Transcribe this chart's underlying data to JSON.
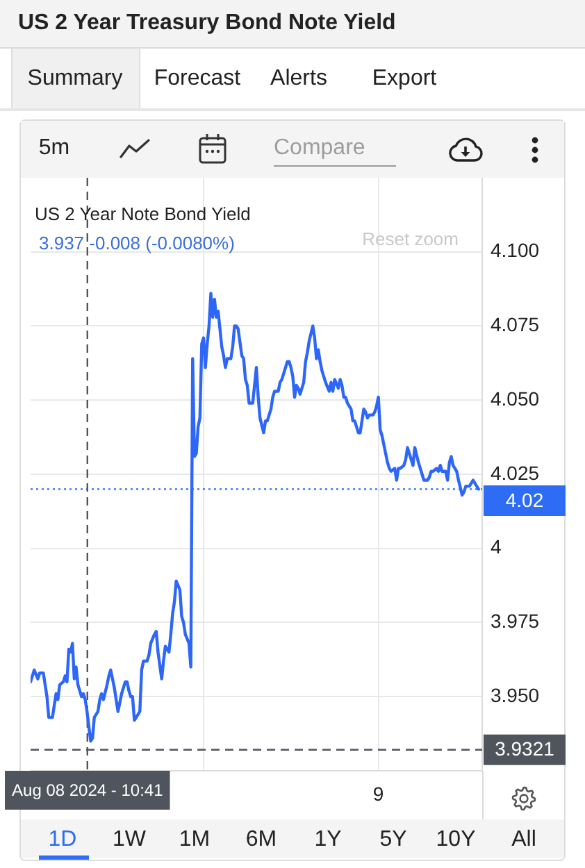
{
  "chart_data": {
    "type": "line",
    "title": "US 2 Year Treasury Bond Note Yield",
    "x": [
      "2024-08-08T08:05",
      "2024-08-08T08:15",
      "2024-08-08T08:25",
      "2024-08-08T08:30",
      "2024-08-08T08:40",
      "2024-08-08T08:45",
      "2024-08-08T08:50",
      "2024-08-08T08:55",
      "2024-08-08T09:05",
      "2024-08-08T09:15",
      "2024-08-08T09:20",
      "2024-08-08T09:25",
      "2024-08-08T09:35",
      "2024-08-08T09:40",
      "2024-08-08T09:45",
      "2024-08-08T09:50",
      "2024-08-08T09:55",
      "2024-08-08T10:00",
      "2024-08-08T10:05",
      "2024-08-08T10:10",
      "2024-08-08T10:15",
      "2024-08-08T10:25",
      "2024-08-08T10:30",
      "2024-08-08T10:35",
      "2024-08-08T10:40",
      "2024-08-08T10:45",
      "2024-08-08T10:50",
      "2024-08-08T10:55",
      "2024-08-08T11:00",
      "2024-08-08T11:10",
      "2024-08-08T11:15",
      "2024-08-08T11:20",
      "2024-08-08T11:25",
      "2024-08-08T11:35",
      "2024-08-08T11:40",
      "2024-08-08T11:45",
      "2024-08-08T11:50",
      "2024-08-08T11:55",
      "2024-08-08T12:05",
      "2024-08-08T12:10",
      "2024-08-08T12:15",
      "2024-08-08T12:25",
      "2024-08-08T12:30",
      "2024-08-08T12:35",
      "2024-08-08T12:40",
      "2024-08-08T12:45",
      "2024-08-08T12:50",
      "2024-08-08T12:55",
      "2024-08-08T13:00",
      "2024-08-08T13:05",
      "2024-08-08T13:10",
      "2024-08-08T13:15",
      "2024-08-08T13:25",
      "2024-08-08T13:30",
      "2024-08-08T13:35",
      "2024-08-08T13:45",
      "2024-08-08T13:50",
      "2024-08-08T13:55",
      "2024-08-08T14:05",
      "2024-08-08T14:10",
      "2024-08-08T14:15",
      "2024-08-08T14:25",
      "2024-08-08T14:30",
      "2024-08-08T14:35",
      "2024-08-08T14:40",
      "2024-08-08T14:45",
      "2024-08-08T14:55",
      "2024-08-08T15:00",
      "2024-08-08T15:05",
      "2024-08-08T15:10",
      "2024-08-08T15:20",
      "2024-08-08T15:25",
      "2024-08-08T15:30",
      "2024-08-08T15:35",
      "2024-08-08T15:40",
      "2024-08-08T15:45",
      "2024-08-08T15:50",
      "2024-08-08T15:55",
      "2024-08-08T16:00",
      "2024-08-08T16:05",
      "2024-08-08T16:10",
      "2024-08-08T16:15",
      "2024-08-08T16:20",
      "2024-08-08T16:25",
      "2024-08-08T16:30",
      "2024-08-08T16:35",
      "2024-08-08T16:40",
      "2024-08-08T16:45",
      "2024-08-08T16:50",
      "2024-08-08T16:55",
      "2024-08-08T17:00",
      "2024-08-08T17:05",
      "2024-08-08T17:15",
      "2024-08-08T17:20",
      "2024-08-08T17:25",
      "2024-08-08T17:30",
      "2024-08-08T17:35",
      "2024-08-08T17:45",
      "2024-08-08T17:50",
      "2024-08-08T17:55",
      "2024-08-08T18:00",
      "2024-08-08T18:05",
      "2024-08-08T18:15",
      "2024-08-08T18:20",
      "2024-08-08T18:25",
      "2024-08-08T18:30",
      "2024-08-08T18:35",
      "2024-08-08T18:45",
      "2024-08-08T18:50",
      "2024-08-08T18:55",
      "2024-08-08T19:05",
      "2024-08-08T19:10",
      "2024-08-08T19:15",
      "2024-08-08T19:25",
      "2024-08-08T19:30",
      "2024-08-08T19:35",
      "2024-08-08T19:40",
      "2024-08-08T19:50",
      "2024-08-08T19:55",
      "2024-08-08T20:00",
      "2024-08-08T20:05",
      "2024-08-08T20:10",
      "2024-08-08T20:15",
      "2024-08-08T20:20",
      "2024-08-08T20:25",
      "2024-08-08T20:35",
      "2024-08-08T20:40",
      "2024-08-08T20:45",
      "2024-08-08T20:50",
      "2024-08-08T21:00",
      "2024-08-08T21:05",
      "2024-08-08T21:10",
      "2024-08-08T21:15",
      "2024-08-08T21:20",
      "2024-08-08T21:25",
      "2024-08-08T21:30",
      "2024-08-08T21:35",
      "2024-08-08T21:45",
      "2024-08-08T21:50",
      "2024-08-08T21:55",
      "2024-08-08T22:00",
      "2024-08-08T22:10",
      "2024-08-08T22:15",
      "2024-08-08T22:20",
      "2024-08-08T22:25",
      "2024-08-08T22:30",
      "2024-08-08T22:35",
      "2024-08-08T22:45",
      "2024-08-08T22:50",
      "2024-08-08T22:55",
      "2024-08-08T23:05",
      "2024-08-08T23:10",
      "2024-08-08T23:15",
      "2024-08-08T23:20",
      "2024-08-08T23:25",
      "2024-08-08T23:30",
      "2024-08-08T23:35",
      "2024-08-08T23:45",
      "2024-08-08T23:50",
      "2024-08-08T23:55",
      "2024-08-09T00:00",
      "2024-08-09T00:05",
      "2024-08-09T00:10",
      "2024-08-09T00:20",
      "2024-08-09T00:25",
      "2024-08-09T00:30",
      "2024-08-09T00:35",
      "2024-08-09T00:45",
      "2024-08-09T00:50",
      "2024-08-09T00:55",
      "2024-08-09T01:00",
      "2024-08-09T01:10",
      "2024-08-09T01:15",
      "2024-08-09T01:20",
      "2024-08-09T01:30",
      "2024-08-09T01:35",
      "2024-08-09T01:40",
      "2024-08-09T01:50",
      "2024-08-09T01:55",
      "2024-08-09T02:00",
      "2024-08-09T02:05",
      "2024-08-09T02:15",
      "2024-08-09T02:20",
      "2024-08-09T02:25",
      "2024-08-09T02:30",
      "2024-08-09T02:40",
      "2024-08-09T02:45",
      "2024-08-09T02:50",
      "2024-08-09T02:55",
      "2024-08-09T03:05",
      "2024-08-09T03:10",
      "2024-08-09T03:15",
      "2024-08-09T03:20",
      "2024-08-09T03:25",
      "2024-08-09T03:30",
      "2024-08-09T03:35",
      "2024-08-09T03:40",
      "2024-08-09T03:50",
      "2024-08-09T03:55",
      "2024-08-09T04:00",
      "2024-08-09T04:05",
      "2024-08-09T04:10",
      "2024-08-09T04:15",
      "2024-08-09T04:20",
      "2024-08-09T04:30",
      "2024-08-09T04:35"
    ],
    "series": [
      {
        "color": "#2e67f8",
        "values": [
          3.955,
          3.959,
          3.956,
          3.958,
          3.958,
          3.954,
          3.95,
          3.943,
          3.943,
          3.951,
          3.949,
          3.954,
          3.955,
          3.957,
          3.955,
          3.966,
          3.965,
          3.968,
          3.956,
          3.96,
          3.954,
          3.95,
          3.951,
          3.949,
          3.945,
          3.94,
          3.935,
          3.936,
          3.943,
          3.945,
          3.949,
          3.951,
          3.949,
          3.954,
          3.957,
          3.959,
          3.956,
          3.953,
          3.945,
          3.948,
          3.951,
          3.955,
          3.955,
          3.952,
          3.95,
          3.95,
          3.942,
          3.943,
          3.944,
          3.945,
          3.959,
          3.962,
          3.962,
          3.964,
          3.968,
          3.971,
          3.972,
          3.965,
          3.956,
          3.962,
          3.967,
          3.965,
          3.971,
          3.978,
          3.982,
          3.989,
          3.986,
          3.977,
          3.975,
          3.971,
          3.968,
          3.96,
          4.064,
          4.031,
          4.032,
          4.041,
          4.044,
          4.069,
          4.071,
          4.061,
          4.069,
          4.075,
          4.086,
          4.078,
          4.084,
          4.078,
          4.08,
          4.074,
          4.068,
          4.065,
          4.061,
          4.064,
          4.064,
          4.068,
          4.075,
          4.075,
          4.074,
          4.065,
          4.064,
          4.057,
          4.055,
          4.049,
          4.049,
          4.055,
          4.061,
          4.051,
          4.044,
          4.039,
          4.043,
          4.043,
          4.047,
          4.051,
          4.053,
          4.053,
          4.056,
          4.057,
          4.059,
          4.063,
          4.063,
          4.061,
          4.058,
          4.051,
          4.055,
          4.054,
          4.052,
          4.056,
          4.063,
          4.066,
          4.07,
          4.075,
          4.071,
          4.064,
          4.067,
          4.063,
          4.06,
          4.058,
          4.056,
          4.053,
          4.056,
          4.053,
          4.057,
          4.054,
          4.057,
          4.055,
          4.051,
          4.051,
          4.049,
          4.047,
          4.043,
          4.043,
          4.039,
          4.039,
          4.043,
          4.047,
          4.046,
          4.044,
          4.045,
          4.045,
          4.046,
          4.048,
          4.051,
          4.04,
          4.038,
          4.032,
          4.029,
          4.027,
          4.026,
          4.027,
          4.023,
          4.027,
          4.027,
          4.028,
          4.03,
          4.034,
          4.03,
          4.028,
          4.034,
          4.029,
          4.027,
          4.025,
          4.023,
          4.023,
          4.024,
          4.026,
          4.026,
          4.027,
          4.026,
          4.028,
          4.026,
          4.026,
          4.023,
          4.029,
          4.031,
          4.028,
          4.027,
          4.026,
          4.023,
          4.018,
          4.019,
          4.021,
          4.021,
          4.021,
          4.022,
          4.023,
          4.021,
          4.02
        ]
      }
    ],
    "xlim": [
      "2024-08-08T08:05",
      "2024-08-09T04:45"
    ],
    "xticks": [
      {
        "value": "2024-08-08T10:41",
        "label": "Aug 08 2024 - 10:41"
      },
      {
        "value": "2024-08-08T16:00",
        "label": null
      },
      {
        "value": "2024-08-09T00:00",
        "label": "9"
      }
    ],
    "ylim": [
      3.925,
      4.125
    ],
    "yticks": [
      {
        "value": 3.95,
        "label": "3.950"
      },
      {
        "value": 3.975,
        "label": "3.975"
      },
      {
        "value": 4,
        "label": "4"
      },
      {
        "value": 4.025,
        "label": "4.025"
      },
      {
        "value": 4.05,
        "label": "4.050"
      },
      {
        "value": 4.075,
        "label": "4.075"
      },
      {
        "value": 4.1,
        "label": "4.100"
      }
    ],
    "ref_lines": [
      {
        "axis": "y",
        "value": 4.02,
        "label": "4.02",
        "color": "#2f6cf5",
        "line_style": "dotted"
      },
      {
        "axis": "y",
        "value": 3.9321,
        "label": "3.9321",
        "color": "#50555d",
        "line_style": "dashed"
      },
      {
        "axis": "x",
        "value": "2024-08-08T10:41",
        "color": "#50555d",
        "line_style": "dashed"
      }
    ],
    "grid": true,
    "annotations": [
      "US 2 Year Note Bond Yield",
      "3.937 -0.008 (-0.0080%)",
      "Reset zoom",
      "Summary",
      "Forecast",
      "Alerts",
      "Export",
      "5m",
      "Compare",
      "1D",
      "1W",
      "1M",
      "6M",
      "1Y",
      "5Y",
      "10Y",
      "All"
    ]
  }
}
